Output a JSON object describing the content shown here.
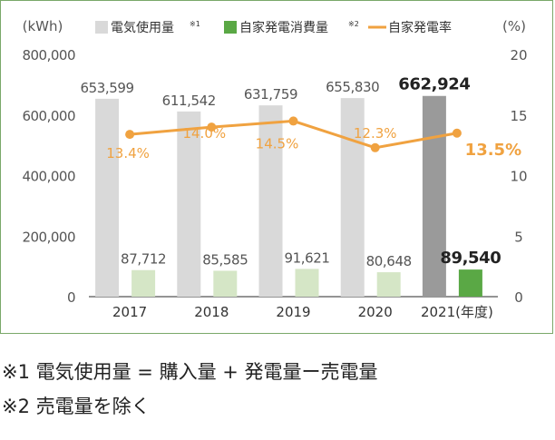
{
  "chart_data": {
    "type": "bar",
    "categories": [
      "2017",
      "2018",
      "2019",
      "2020",
      "2021"
    ],
    "category_suffix_last": "(年度)",
    "left_axis": {
      "unit": "(kWh)",
      "ylim": [
        0,
        800000
      ],
      "ticks": [
        "0",
        "200,000",
        "400,000",
        "600,000",
        "800,000"
      ]
    },
    "right_axis": {
      "unit": "(%)",
      "ylim": [
        0,
        20
      ],
      "ticks": [
        "0",
        "5",
        "10",
        "15",
        "20"
      ]
    },
    "series": [
      {
        "name": "電気使用量",
        "name_sup": "※1",
        "kind": "bar",
        "values": [
          653599,
          611542,
          631759,
          655830,
          662924
        ],
        "labels": [
          "653,599",
          "611,542",
          "631,759",
          "655,830",
          "662,924"
        ],
        "color": "#d9d9d9",
        "highlight_color": "#9a9a9a"
      },
      {
        "name": "自家発電消費量",
        "name_sup": "※2",
        "kind": "bar",
        "values": [
          87712,
          85585,
          91621,
          80648,
          89540
        ],
        "labels": [
          "87,712",
          "85,585",
          "91,621",
          "80,648",
          "89,540"
        ],
        "color": "#d5e6c6",
        "highlight_color": "#5aa845"
      },
      {
        "name": "自家発電率",
        "kind": "line",
        "axis": "right",
        "values": [
          13.4,
          14.0,
          14.5,
          12.3,
          13.5
        ],
        "labels": [
          "13.4%",
          "14.0%",
          "14.5%",
          "12.3%",
          "13.5%"
        ],
        "color": "#f0a240"
      }
    ],
    "highlight_category": "2021",
    "grid": false,
    "legend_placement": "top"
  },
  "notes": {
    "note1": "※1 電気使用量 = 購入量 + 発電量ー売電量",
    "note2": "※2 売電量を除く"
  }
}
